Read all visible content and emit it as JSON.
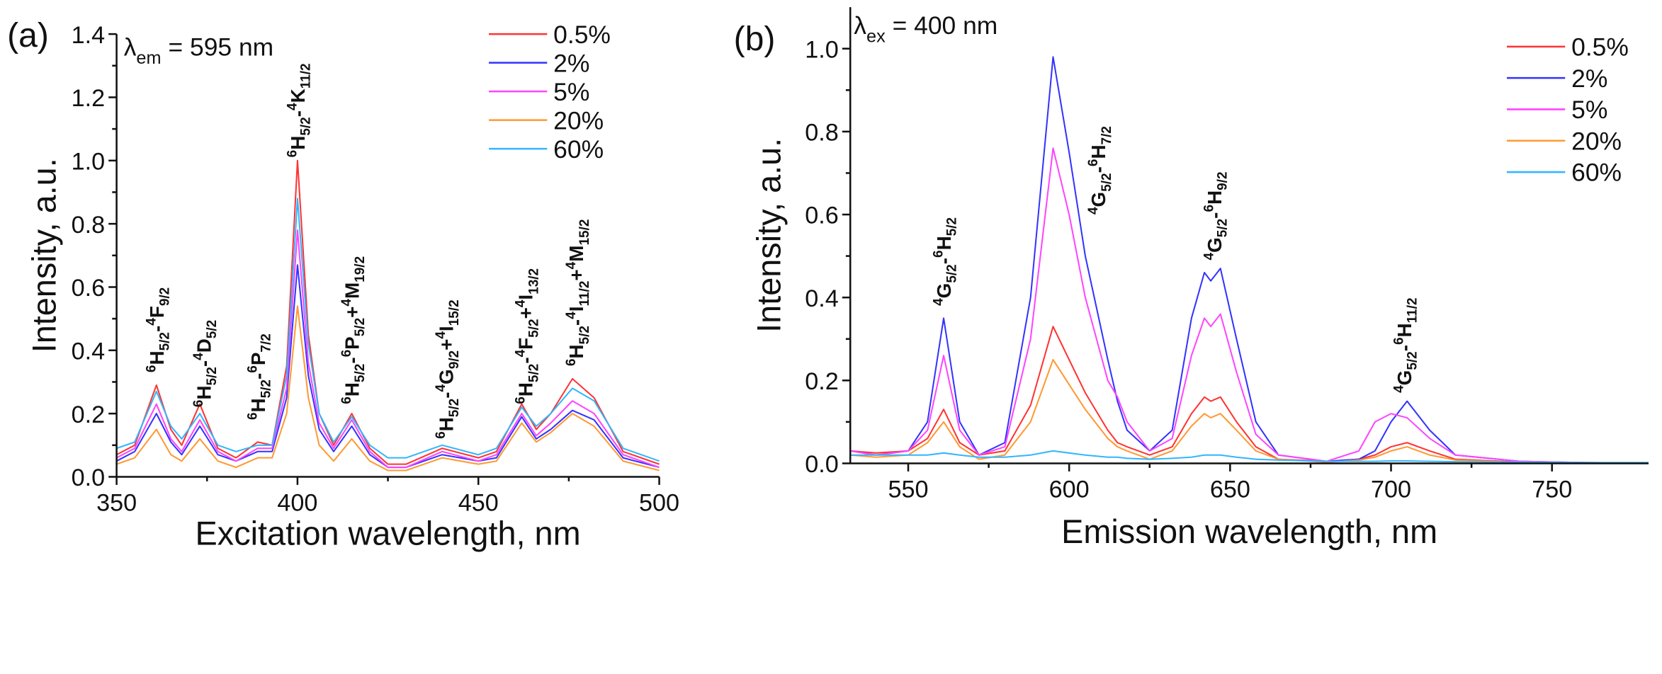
{
  "chart_data": [
    {
      "type": "line",
      "panel_label": "(a)",
      "condition": {
        "symbol": "λ",
        "sub": "em",
        "rest": " = 595 nm"
      },
      "xlabel": "Excitation wavelength, nm",
      "ylabel": "Intensity, a.u.",
      "xlim": [
        350,
        500
      ],
      "ylim": [
        0,
        1.4
      ],
      "xticks": [
        "350",
        "400",
        "450",
        "500"
      ],
      "xtick_values": [
        350,
        400,
        450,
        500
      ],
      "yticks": [
        "0.0",
        "0.2",
        "0.4",
        "0.6",
        "0.8",
        "1.0",
        "1.2",
        "1.4"
      ],
      "ytick_values": [
        0,
        0.2,
        0.4,
        0.6,
        0.8,
        1.0,
        1.2,
        1.4
      ],
      "legend_position": "top-right",
      "x": [
        350,
        355,
        361,
        365,
        368,
        373,
        378,
        383,
        389,
        393,
        397,
        400,
        403,
        406,
        410,
        415,
        420,
        425,
        430,
        440,
        450,
        455,
        462,
        466,
        470,
        476,
        482,
        490,
        500
      ],
      "series": [
        {
          "name": "0.5%",
          "color": "#ff3333",
          "values": [
            0.07,
            0.1,
            0.29,
            0.15,
            0.1,
            0.23,
            0.09,
            0.06,
            0.11,
            0.1,
            0.35,
            1.0,
            0.45,
            0.2,
            0.1,
            0.2,
            0.09,
            0.04,
            0.04,
            0.09,
            0.06,
            0.08,
            0.23,
            0.15,
            0.2,
            0.31,
            0.25,
            0.08,
            0.04
          ]
        },
        {
          "name": "2%",
          "color": "#3333ff",
          "values": [
            0.05,
            0.08,
            0.2,
            0.11,
            0.07,
            0.16,
            0.07,
            0.05,
            0.08,
            0.08,
            0.25,
            0.67,
            0.32,
            0.15,
            0.08,
            0.16,
            0.07,
            0.03,
            0.03,
            0.07,
            0.05,
            0.06,
            0.19,
            0.12,
            0.15,
            0.21,
            0.18,
            0.06,
            0.03
          ]
        },
        {
          "name": "5%",
          "color": "#ff44ff",
          "values": [
            0.06,
            0.09,
            0.23,
            0.12,
            0.08,
            0.18,
            0.08,
            0.05,
            0.09,
            0.09,
            0.28,
            0.78,
            0.36,
            0.17,
            0.09,
            0.18,
            0.08,
            0.03,
            0.03,
            0.08,
            0.05,
            0.07,
            0.2,
            0.13,
            0.17,
            0.24,
            0.2,
            0.07,
            0.03
          ]
        },
        {
          "name": "20%",
          "color": "#ff9933",
          "values": [
            0.04,
            0.06,
            0.15,
            0.07,
            0.05,
            0.12,
            0.05,
            0.03,
            0.06,
            0.06,
            0.2,
            0.54,
            0.25,
            0.1,
            0.05,
            0.12,
            0.05,
            0.02,
            0.02,
            0.06,
            0.04,
            0.05,
            0.17,
            0.11,
            0.14,
            0.2,
            0.16,
            0.05,
            0.02
          ]
        },
        {
          "name": "60%",
          "color": "#33b5ff",
          "values": [
            0.09,
            0.11,
            0.27,
            0.16,
            0.12,
            0.2,
            0.1,
            0.08,
            0.1,
            0.1,
            0.32,
            0.88,
            0.42,
            0.2,
            0.11,
            0.19,
            0.1,
            0.06,
            0.06,
            0.1,
            0.07,
            0.09,
            0.22,
            0.16,
            0.2,
            0.28,
            0.24,
            0.09,
            0.05
          ]
        }
      ],
      "annotations": [
        [
          {
            "t": "6",
            "s": "sup"
          },
          {
            "t": "H"
          },
          {
            "t": "5/2",
            "s": "sub"
          },
          {
            "t": "-"
          },
          {
            "t": "4",
            "s": "sup"
          },
          {
            "t": "F"
          },
          {
            "t": "9/2",
            "s": "sub"
          }
        ],
        [
          {
            "t": "6",
            "s": "sup"
          },
          {
            "t": "H"
          },
          {
            "t": "5/2",
            "s": "sub"
          },
          {
            "t": "-"
          },
          {
            "t": "4",
            "s": "sup"
          },
          {
            "t": "D"
          },
          {
            "t": "5/2",
            "s": "sub"
          }
        ],
        [
          {
            "t": "6",
            "s": "sup"
          },
          {
            "t": "H"
          },
          {
            "t": "5/2",
            "s": "sub"
          },
          {
            "t": "-"
          },
          {
            "t": "6",
            "s": "sup"
          },
          {
            "t": "P"
          },
          {
            "t": "7/2",
            "s": "sub"
          }
        ],
        [
          {
            "t": "6",
            "s": "sup"
          },
          {
            "t": "H"
          },
          {
            "t": "5/2",
            "s": "sub"
          },
          {
            "t": "-"
          },
          {
            "t": "4",
            "s": "sup"
          },
          {
            "t": "K"
          },
          {
            "t": "11/2",
            "s": "sub"
          }
        ],
        [
          {
            "t": "6",
            "s": "sup"
          },
          {
            "t": "H"
          },
          {
            "t": "5/2",
            "s": "sub"
          },
          {
            "t": "-"
          },
          {
            "t": "6",
            "s": "sup"
          },
          {
            "t": "P"
          },
          {
            "t": "5/2",
            "s": "sub"
          },
          {
            "t": "+"
          },
          {
            "t": "4",
            "s": "sup"
          },
          {
            "t": "M"
          },
          {
            "t": "19/2",
            "s": "sub"
          }
        ],
        [
          {
            "t": "6",
            "s": "sup"
          },
          {
            "t": "H"
          },
          {
            "t": "5/2",
            "s": "sub"
          },
          {
            "t": "-"
          },
          {
            "t": "4",
            "s": "sup"
          },
          {
            "t": "G"
          },
          {
            "t": "9/2",
            "s": "sub"
          },
          {
            "t": "+"
          },
          {
            "t": "4",
            "s": "sup"
          },
          {
            "t": "I"
          },
          {
            "t": "15/2",
            "s": "sub"
          }
        ],
        [
          {
            "t": "6",
            "s": "sup"
          },
          {
            "t": "H"
          },
          {
            "t": "5/2",
            "s": "sub"
          },
          {
            "t": "-"
          },
          {
            "t": "4",
            "s": "sup"
          },
          {
            "t": "F"
          },
          {
            "t": "5/2",
            "s": "sub"
          },
          {
            "t": "+"
          },
          {
            "t": "4",
            "s": "sup"
          },
          {
            "t": "I"
          },
          {
            "t": "13/2",
            "s": "sub"
          }
        ],
        [
          {
            "t": "6",
            "s": "sup"
          },
          {
            "t": "H"
          },
          {
            "t": "5/2",
            "s": "sub"
          },
          {
            "t": "-"
          },
          {
            "t": "4",
            "s": "sup"
          },
          {
            "t": "I"
          },
          {
            "t": "11/2",
            "s": "sub"
          },
          {
            "t": "+"
          },
          {
            "t": "4",
            "s": "sup"
          },
          {
            "t": "M"
          },
          {
            "t": "15/2",
            "s": "sub"
          }
        ]
      ]
    },
    {
      "type": "line",
      "panel_label": "(b)",
      "condition": {
        "symbol": "λ",
        "sub": "ex",
        "rest": " = 400 nm"
      },
      "xlabel": "Emission wavelength, nm",
      "ylabel": "Intensity, a.u.",
      "xlim": [
        532,
        780
      ],
      "ylim": [
        0,
        1.1
      ],
      "xticks": [
        "550",
        "600",
        "650",
        "700",
        "750"
      ],
      "xtick_values": [
        550,
        600,
        650,
        700,
        750
      ],
      "yticks": [
        "0.0",
        "0.2",
        "0.4",
        "0.6",
        "0.8",
        "1.0"
      ],
      "ytick_values": [
        0,
        0.2,
        0.4,
        0.6,
        0.8,
        1.0
      ],
      "legend_position": "top-right",
      "x": [
        532,
        540,
        550,
        556,
        561,
        566,
        572,
        580,
        588,
        595,
        600,
        605,
        612,
        615,
        618,
        625,
        632,
        638,
        642,
        644,
        647,
        652,
        658,
        665,
        680,
        690,
        695,
        700,
        705,
        712,
        720,
        740,
        760,
        780
      ],
      "series": [
        {
          "name": "0.5%",
          "color": "#ff3333",
          "values": [
            0.03,
            0.025,
            0.03,
            0.06,
            0.13,
            0.05,
            0.02,
            0.03,
            0.14,
            0.33,
            0.25,
            0.17,
            0.08,
            0.05,
            0.04,
            0.02,
            0.04,
            0.12,
            0.16,
            0.15,
            0.16,
            0.1,
            0.04,
            0.01,
            0.005,
            0.01,
            0.02,
            0.04,
            0.05,
            0.03,
            0.01,
            0.003,
            0.002,
            0.001
          ]
        },
        {
          "name": "2%",
          "color": "#3333ff",
          "values": [
            0.03,
            0.02,
            0.03,
            0.1,
            0.35,
            0.1,
            0.02,
            0.05,
            0.4,
            0.98,
            0.75,
            0.5,
            0.25,
            0.15,
            0.08,
            0.03,
            0.08,
            0.35,
            0.46,
            0.44,
            0.47,
            0.3,
            0.1,
            0.02,
            0.005,
            0.01,
            0.03,
            0.1,
            0.15,
            0.08,
            0.02,
            0.005,
            0.002,
            0.001
          ]
        },
        {
          "name": "5%",
          "color": "#ff44ff",
          "values": [
            0.03,
            0.02,
            0.03,
            0.08,
            0.26,
            0.08,
            0.02,
            0.04,
            0.3,
            0.76,
            0.6,
            0.4,
            0.2,
            0.16,
            0.1,
            0.03,
            0.06,
            0.26,
            0.35,
            0.33,
            0.36,
            0.22,
            0.07,
            0.02,
            0.005,
            0.03,
            0.1,
            0.12,
            0.11,
            0.06,
            0.02,
            0.005,
            0.002,
            0.001
          ]
        },
        {
          "name": "20%",
          "color": "#ff9933",
          "values": [
            0.02,
            0.015,
            0.02,
            0.05,
            0.1,
            0.04,
            0.01,
            0.02,
            0.1,
            0.25,
            0.19,
            0.13,
            0.06,
            0.04,
            0.03,
            0.01,
            0.03,
            0.09,
            0.12,
            0.11,
            0.12,
            0.08,
            0.03,
            0.01,
            0.003,
            0.008,
            0.015,
            0.03,
            0.04,
            0.02,
            0.008,
            0.002,
            0.001,
            0.001
          ]
        },
        {
          "name": "60%",
          "color": "#33b5ff",
          "values": [
            0.02,
            0.02,
            0.02,
            0.02,
            0.025,
            0.02,
            0.015,
            0.015,
            0.02,
            0.03,
            0.025,
            0.02,
            0.015,
            0.015,
            0.012,
            0.01,
            0.012,
            0.015,
            0.02,
            0.02,
            0.02,
            0.015,
            0.01,
            0.008,
            0.005,
            0.005,
            0.005,
            0.006,
            0.006,
            0.005,
            0.004,
            0.003,
            0.002,
            0.002
          ]
        }
      ],
      "annotations": [
        [
          {
            "t": "4",
            "s": "sup"
          },
          {
            "t": "G"
          },
          {
            "t": "5/2",
            "s": "sub"
          },
          {
            "t": "-"
          },
          {
            "t": "6",
            "s": "sup"
          },
          {
            "t": "H"
          },
          {
            "t": "5/2",
            "s": "sub"
          }
        ],
        [
          {
            "t": "4",
            "s": "sup"
          },
          {
            "t": "G"
          },
          {
            "t": "5/2",
            "s": "sub"
          },
          {
            "t": "-"
          },
          {
            "t": "6",
            "s": "sup"
          },
          {
            "t": "H"
          },
          {
            "t": "7/2",
            "s": "sub"
          }
        ],
        [
          {
            "t": "4",
            "s": "sup"
          },
          {
            "t": "G"
          },
          {
            "t": "5/2",
            "s": "sub"
          },
          {
            "t": "-"
          },
          {
            "t": "6",
            "s": "sup"
          },
          {
            "t": "H"
          },
          {
            "t": "9/2",
            "s": "sub"
          }
        ],
        [
          {
            "t": "4",
            "s": "sup"
          },
          {
            "t": "G"
          },
          {
            "t": "5/2",
            "s": "sub"
          },
          {
            "t": "-"
          },
          {
            "t": "6",
            "s": "sup"
          },
          {
            "t": "H"
          },
          {
            "t": "11/2",
            "s": "sub"
          }
        ]
      ]
    }
  ]
}
